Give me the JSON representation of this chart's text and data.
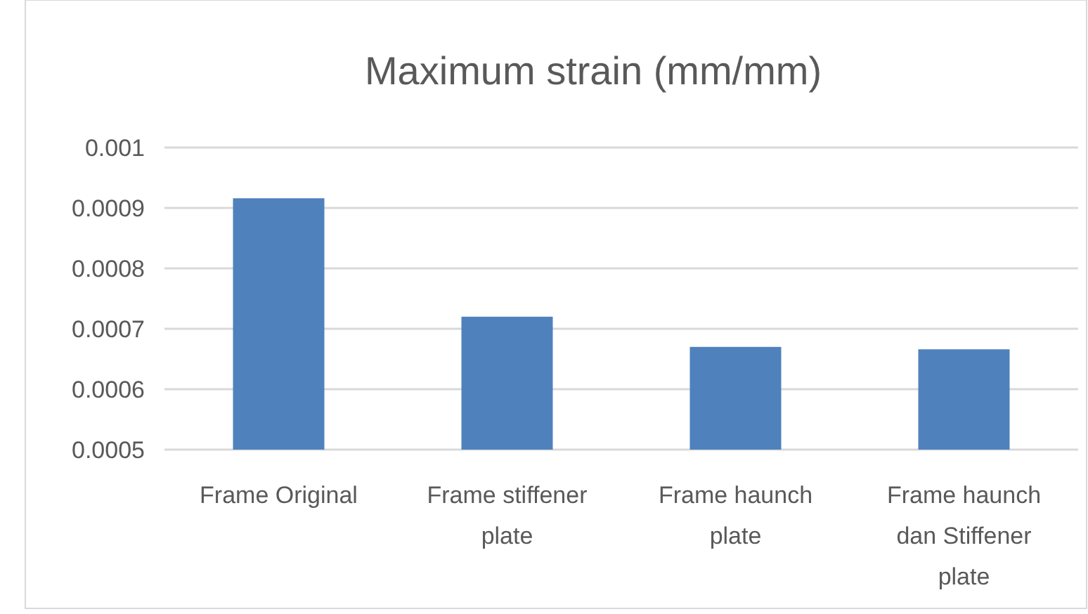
{
  "chart_data": {
    "type": "bar",
    "title": "Maximum strain (mm/mm)",
    "categories": [
      "Frame Original",
      "Frame stiffener plate",
      "Frame haunch plate",
      "Frame haunch dan Stiffener plate"
    ],
    "values": [
      0.000916,
      0.00072,
      0.00067,
      0.000666
    ],
    "color": "#4f81bd",
    "ylim": [
      0.0005,
      0.001
    ],
    "yticks": [
      0.0005,
      0.0006,
      0.0007,
      0.0008,
      0.0009,
      0.001
    ],
    "grid": "y"
  }
}
